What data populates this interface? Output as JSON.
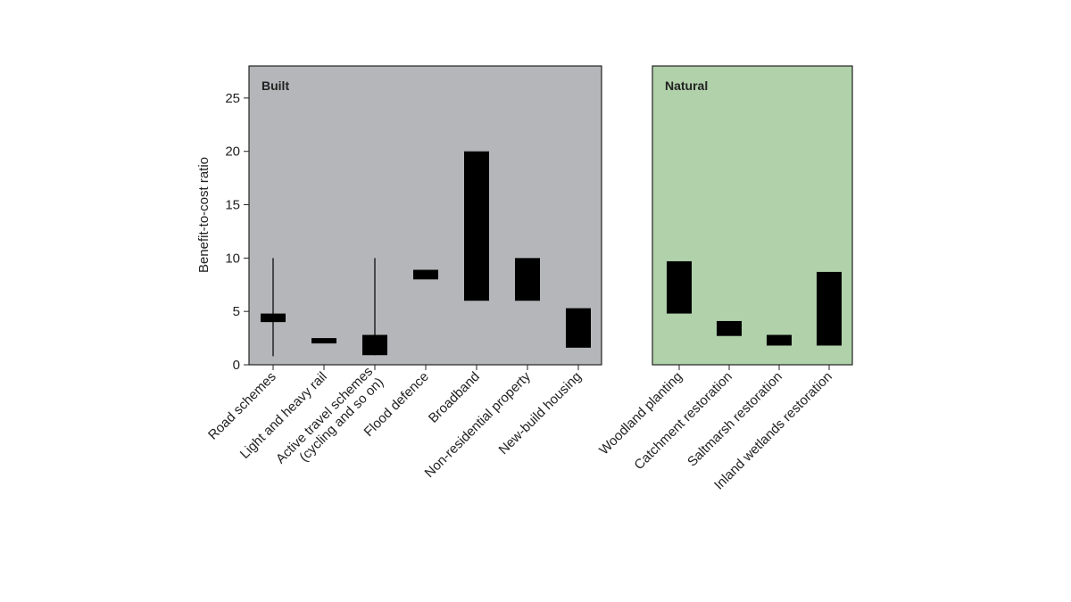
{
  "chart_data": {
    "type": "range-bar",
    "ylabel": "Benefit-to-cost ratio",
    "ylim": [
      0,
      28
    ],
    "yticks": [
      0,
      5,
      10,
      15,
      20,
      25
    ],
    "panels": [
      {
        "title": "Built",
        "background": "#b5b6b9",
        "categories": [
          {
            "label": [
              "Road schemes"
            ],
            "low": 4.0,
            "high": 4.8,
            "whisker_low": 0.8,
            "whisker_high": 10.0
          },
          {
            "label": [
              "Light and heavy rail"
            ],
            "low": 2.0,
            "high": 2.5
          },
          {
            "label": [
              "Active travel schemes",
              "(cycling and so on)"
            ],
            "low": 0.9,
            "high": 2.8,
            "whisker_low": 0.9,
            "whisker_high": 10.0
          },
          {
            "label": [
              "Flood defence"
            ],
            "low": 8.0,
            "high": 8.9
          },
          {
            "label": [
              "Broadband"
            ],
            "low": 6.0,
            "high": 20.0
          },
          {
            "label": [
              "Non-residential property"
            ],
            "low": 6.0,
            "high": 10.0
          },
          {
            "label": [
              "New-build housing"
            ],
            "low": 1.6,
            "high": 5.3
          }
        ]
      },
      {
        "title": "Natural",
        "background": "#b0d1aa",
        "categories": [
          {
            "label": [
              "Woodland planting"
            ],
            "low": 4.8,
            "high": 9.7
          },
          {
            "label": [
              "Catchment restoration"
            ],
            "low": 2.7,
            "high": 4.1
          },
          {
            "label": [
              "Saltmarsh restoration"
            ],
            "low": 1.8,
            "high": 2.8
          },
          {
            "label": [
              "Inland wetlands restoration"
            ],
            "low": 1.8,
            "high": 8.7
          }
        ]
      }
    ],
    "colors": {
      "bar": "#000000",
      "frame": "#222222",
      "text": "#222222"
    }
  }
}
